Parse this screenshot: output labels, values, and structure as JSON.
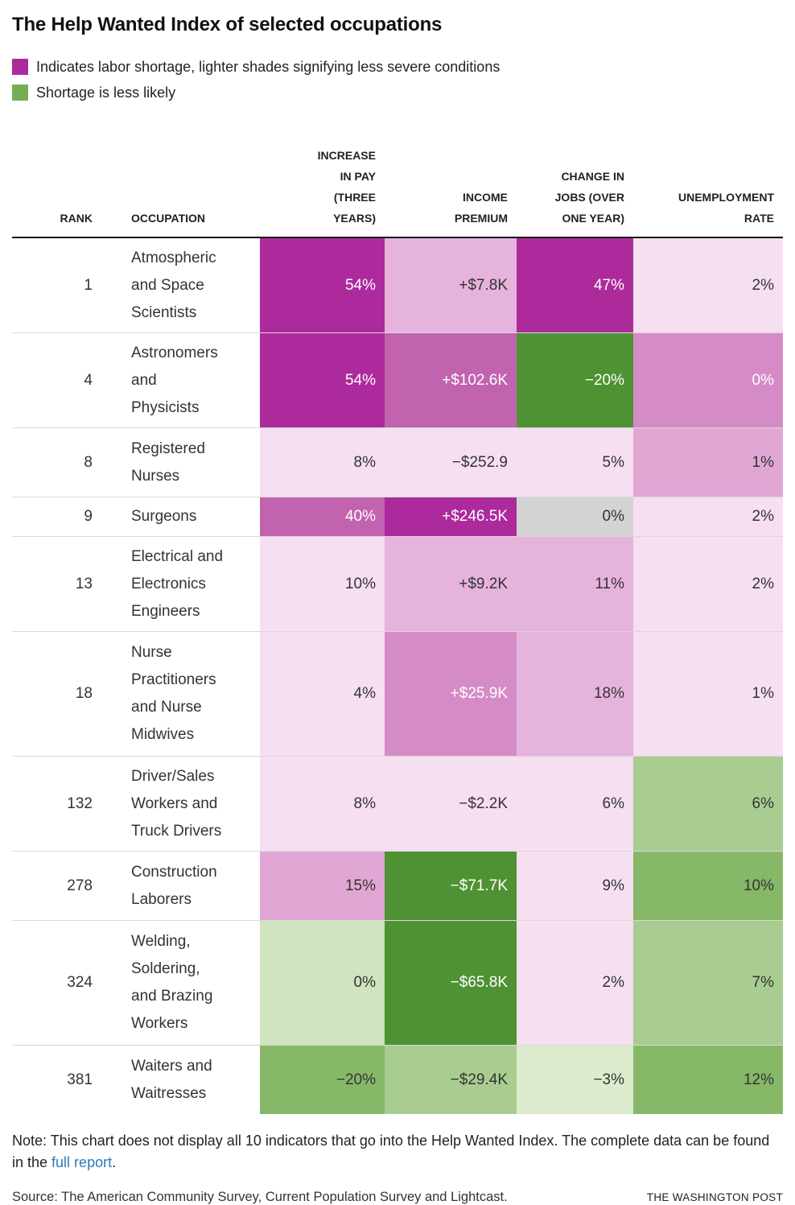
{
  "chart_data": {
    "type": "heatmap",
    "title": "The Help Wanted Index of selected occupations",
    "legend": [
      {
        "swatch_color_key": "legend_magenta",
        "label": "Indicates labor shortage, lighter shades signifying less severe conditions"
      },
      {
        "swatch_color_key": "legend_green",
        "label": "Shortage is less likely"
      }
    ],
    "columns": [
      {
        "id": "rank",
        "label": "RANK",
        "align": "right"
      },
      {
        "id": "occupation",
        "label": "OCCUPATION",
        "align": "left"
      },
      {
        "id": "pay",
        "label": "INCREASE\nIN PAY\n(THREE\nYEARS)",
        "align": "right"
      },
      {
        "id": "income",
        "label": "INCOME\nPREMIUM",
        "align": "right"
      },
      {
        "id": "jobs",
        "label": "CHANGE IN\nJOBS (OVER\nONE YEAR)",
        "align": "right"
      },
      {
        "id": "unemployment",
        "label": "UNEMPLOYMENT\nRATE",
        "align": "right"
      }
    ],
    "rows": [
      {
        "rank": "1",
        "occupation": "Atmospheric\nand Space\nScientists",
        "cells": [
          {
            "value": "54%",
            "shade": "p1"
          },
          {
            "value": "+$7.8K",
            "shade": "p4"
          },
          {
            "value": "47%",
            "shade": "p1"
          },
          {
            "value": "2%",
            "shade": "p5"
          }
        ]
      },
      {
        "rank": "4",
        "occupation": "Astronomers\nand\nPhysicists",
        "cells": [
          {
            "value": "54%",
            "shade": "p1"
          },
          {
            "value": "+$102.6K",
            "shade": "p2"
          },
          {
            "value": "−20%",
            "shade": "g1"
          },
          {
            "value": "0%",
            "shade": "p3"
          }
        ]
      },
      {
        "rank": "8",
        "occupation": "Registered\nNurses",
        "cells": [
          {
            "value": "8%",
            "shade": "p5"
          },
          {
            "value": "−$252.9",
            "shade": "p5"
          },
          {
            "value": "5%",
            "shade": "p5"
          },
          {
            "value": "1%",
            "shade": "p4b"
          }
        ]
      },
      {
        "rank": "9",
        "occupation": "Surgeons",
        "cells": [
          {
            "value": "40%",
            "shade": "p2"
          },
          {
            "value": "+$246.5K",
            "shade": "p1"
          },
          {
            "value": "0%",
            "shade": "gray"
          },
          {
            "value": "2%",
            "shade": "p5"
          }
        ]
      },
      {
        "rank": "13",
        "occupation": "Electrical and\nElectronics\nEngineers",
        "cells": [
          {
            "value": "10%",
            "shade": "p5"
          },
          {
            "value": "+$9.2K",
            "shade": "p4"
          },
          {
            "value": "11%",
            "shade": "p4"
          },
          {
            "value": "2%",
            "shade": "p5"
          }
        ]
      },
      {
        "rank": "18",
        "occupation": "Nurse\nPractitioners\nand Nurse\nMidwives",
        "cells": [
          {
            "value": "4%",
            "shade": "p5"
          },
          {
            "value": "+$25.9K",
            "shade": "p3"
          },
          {
            "value": "18%",
            "shade": "p4"
          },
          {
            "value": "1%",
            "shade": "p5"
          }
        ]
      },
      {
        "rank": "132",
        "occupation": "Driver/Sales\nWorkers and\nTruck Drivers",
        "cells": [
          {
            "value": "8%",
            "shade": "p5"
          },
          {
            "value": "−$2.2K",
            "shade": "p5"
          },
          {
            "value": "6%",
            "shade": "p5"
          },
          {
            "value": "6%",
            "shade": "g3"
          }
        ]
      },
      {
        "rank": "278",
        "occupation": "Construction\nLaborers",
        "cells": [
          {
            "value": "15%",
            "shade": "p4b"
          },
          {
            "value": "−$71.7K",
            "shade": "g1"
          },
          {
            "value": "9%",
            "shade": "p5"
          },
          {
            "value": "10%",
            "shade": "g2"
          }
        ]
      },
      {
        "rank": "324",
        "occupation": "Welding,\nSoldering,\nand Brazing\nWorkers",
        "cells": [
          {
            "value": "0%",
            "shade": "g4"
          },
          {
            "value": "−$65.8K",
            "shade": "g1"
          },
          {
            "value": "2%",
            "shade": "p5"
          },
          {
            "value": "7%",
            "shade": "g3"
          }
        ]
      },
      {
        "rank": "381",
        "occupation": "Waiters and\nWaitresses",
        "cells": [
          {
            "value": "−20%",
            "shade": "g2"
          },
          {
            "value": "−$29.4K",
            "shade": "g3"
          },
          {
            "value": "−3%",
            "shade": "g5"
          },
          {
            "value": "12%",
            "shade": "g2"
          }
        ]
      }
    ]
  },
  "note": {
    "prefix": "Note: This chart does not display all 10 indicators that go into the Help Wanted Index. The complete data can be found in the ",
    "link": "full report",
    "suffix": "."
  },
  "source": "Source: The American Community Survey, Current Population Survey and Lightcast.",
  "attribution": "THE WASHINGTON POST",
  "colors": {
    "p1": "#ad2a9c",
    "p2": "#c263b0",
    "p3": "#d48bc6",
    "p4": "#e6b3dc",
    "p4b": "#e0a7d4",
    "p5": "#f5dff0",
    "gray": "#d3d3d3",
    "g1": "#4f9233",
    "g2": "#86b868",
    "g3": "#a9cd90",
    "g4": "#cfe4bf",
    "g5": "#dcebcd",
    "legend_magenta": "#ad2a9c",
    "legend_green": "#74ae52",
    "link": "#2b7bba",
    "text_dark": "#333333",
    "text_light": "#ffffff"
  },
  "light_text_shades": [
    "p1",
    "p2",
    "p3",
    "g1"
  ]
}
